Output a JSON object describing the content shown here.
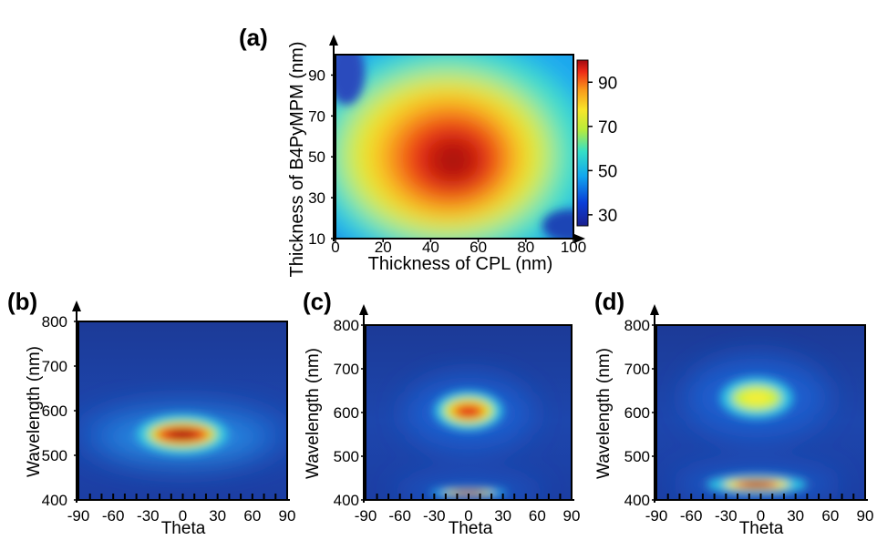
{
  "chart_data": [
    {
      "panel": "(a)",
      "type": "heatmap",
      "xlabel": "Thickness of CPL (nm)",
      "ylabel": "Thickness of B4PyMPM (nm)",
      "xlim": [
        0,
        100
      ],
      "ylim": [
        10,
        100
      ],
      "xticks": [
        "0",
        "20",
        "40",
        "60",
        "80",
        "100"
      ],
      "yticks": [
        "10",
        "30",
        "50",
        "70",
        "90"
      ],
      "colorbar": {
        "ticks": [
          "30",
          "50",
          "70",
          "90"
        ],
        "range": [
          25,
          100
        ]
      },
      "peak": {
        "x": 50,
        "y": 48,
        "value": 100
      },
      "min_value": 25,
      "colormap": "jet"
    },
    {
      "panel": "(b)",
      "type": "heatmap",
      "xlabel": "Theta",
      "ylabel": "Wavelength (nm)",
      "xlim": [
        -90,
        90
      ],
      "ylim": [
        400,
        800
      ],
      "xticks": [
        "-90",
        "-60",
        "-30",
        "0",
        "30",
        "60",
        "90"
      ],
      "yticks": [
        "400",
        "500",
        "600",
        "700",
        "800"
      ],
      "emission_peaks": [
        {
          "theta": 0,
          "wavelength": 545,
          "relative_intensity": 1.0
        }
      ],
      "colormap": "jet"
    },
    {
      "panel": "(c)",
      "type": "heatmap",
      "xlabel": "Theta",
      "ylabel": "Wavelength (nm)",
      "xlim": [
        -90,
        90
      ],
      "ylim": [
        400,
        800
      ],
      "xticks": [
        "-90",
        "-60",
        "-30",
        "0",
        "30",
        "60",
        "90"
      ],
      "yticks": [
        "400",
        "500",
        "600",
        "700",
        "800"
      ],
      "emission_peaks": [
        {
          "theta": 0,
          "wavelength": 605,
          "relative_intensity": 1.0
        },
        {
          "theta": 0,
          "wavelength": 425,
          "relative_intensity": 0.95
        }
      ],
      "colormap": "jet"
    },
    {
      "panel": "(d)",
      "type": "heatmap",
      "xlabel": "Theta",
      "ylabel": "Wavelength (nm)",
      "xlim": [
        -90,
        90
      ],
      "ylim": [
        400,
        800
      ],
      "xticks": [
        "-90",
        "-60",
        "-30",
        "0",
        "30",
        "60",
        "90"
      ],
      "yticks": [
        "400",
        "500",
        "600",
        "700",
        "800"
      ],
      "emission_peaks": [
        {
          "theta": 0,
          "wavelength": 635,
          "relative_intensity": 0.82
        },
        {
          "theta": 0,
          "wavelength": 445,
          "relative_intensity": 1.0
        }
      ],
      "colormap": "jet"
    }
  ]
}
